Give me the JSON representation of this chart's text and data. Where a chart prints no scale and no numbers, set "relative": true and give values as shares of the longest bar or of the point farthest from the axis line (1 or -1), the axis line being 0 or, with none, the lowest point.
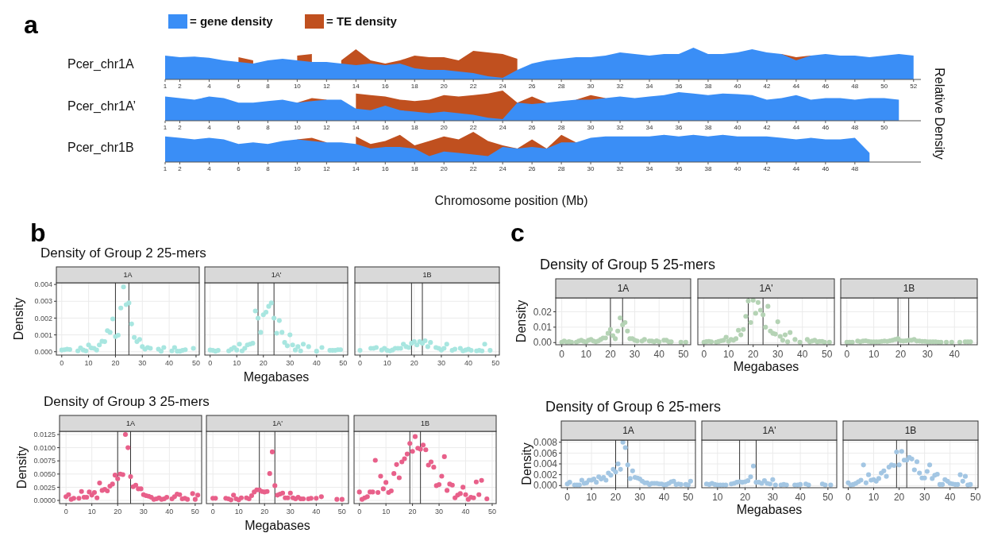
{
  "chart_data": [
    {
      "type": "area",
      "relative": true,
      "title": "Pcer_chr1A",
      "annotations": [
        "a"
      ],
      "legend": "top left",
      "xlim": [
        1,
        52.5
      ],
      "xticks": [
        1,
        2,
        4,
        6,
        8,
        10,
        12,
        14,
        16,
        18,
        20,
        22,
        24,
        26,
        28,
        30,
        32,
        34,
        36,
        38,
        40,
        42,
        44,
        46,
        48,
        50,
        52
      ],
      "x": [
        1,
        2,
        3,
        4,
        5,
        6,
        7,
        8,
        9,
        10,
        11,
        12,
        13,
        14,
        15,
        16,
        17,
        18,
        19,
        20,
        21,
        22,
        23,
        24,
        25,
        26,
        27,
        28,
        29,
        30,
        31,
        32,
        33,
        34,
        35,
        36,
        37,
        38,
        39,
        40,
        41,
        42,
        43,
        44,
        45,
        46,
        47,
        48,
        49,
        50,
        51,
        52
      ],
      "series": [
        {
          "name": "= gene density",
          "color": "#3a8ef6",
          "values": [
            0.75,
            0.7,
            0.72,
            0.68,
            0.6,
            0.55,
            0.5,
            0.6,
            0.65,
            0.6,
            0.55,
            0.55,
            0.5,
            0.45,
            0.5,
            0.45,
            0.5,
            0.35,
            0.3,
            0.3,
            0.25,
            0.2,
            0.1,
            0.05,
            0.3,
            0.5,
            0.6,
            0.65,
            0.7,
            0.7,
            0.75,
            0.85,
            0.8,
            0.75,
            0.8,
            0.8,
            1.0,
            0.8,
            0.8,
            0.85,
            0.95,
            0.85,
            0.8,
            0.6,
            0.75,
            0.8,
            0.75,
            0.75,
            0.7,
            0.75,
            0.8,
            0.75
          ]
        },
        {
          "name": "= TE density",
          "color": "#c0501f",
          "values": [
            null,
            null,
            null,
            null,
            null,
            0.7,
            0.6,
            null,
            null,
            0.75,
            0.8,
            null,
            0.6,
            0.95,
            0.6,
            0.5,
            0.6,
            0.75,
            0.7,
            0.7,
            0.6,
            0.9,
            0.85,
            0.8,
            0.65,
            null,
            null,
            null,
            null,
            null,
            null,
            null,
            null,
            null,
            null,
            null,
            null,
            null,
            null,
            null,
            null,
            null,
            0.8,
            0.7,
            0.75,
            null,
            null,
            null,
            null,
            null,
            null,
            null
          ]
        }
      ]
    },
    {
      "type": "area",
      "relative": true,
      "title": "Pcer_chr1A’",
      "ylabel": "Relative Density",
      "xlim": [
        1,
        52.5
      ],
      "xticks": [
        1,
        2,
        4,
        6,
        8,
        10,
        12,
        14,
        16,
        18,
        20,
        22,
        24,
        26,
        28,
        30,
        32,
        34,
        36,
        38,
        40,
        42,
        44,
        46,
        48,
        50
      ],
      "x": [
        1,
        2,
        3,
        4,
        5,
        6,
        7,
        8,
        9,
        10,
        11,
        12,
        13,
        14,
        15,
        16,
        17,
        18,
        19,
        20,
        21,
        22,
        23,
        24,
        25,
        26,
        27,
        28,
        29,
        30,
        31,
        32,
        33,
        34,
        35,
        36,
        37,
        38,
        39,
        40,
        41,
        42,
        43,
        44,
        45,
        46,
        47,
        48,
        49,
        50,
        51
      ],
      "series": [
        {
          "color": "#3a8ef6",
          "values": [
            0.8,
            0.75,
            0.7,
            0.8,
            0.75,
            0.6,
            0.6,
            0.65,
            0.7,
            0.6,
            0.65,
            0.7,
            0.7,
            0.4,
            0.35,
            0.5,
            0.35,
            0.3,
            0.25,
            0.3,
            0.25,
            0.2,
            0.1,
            0.05,
            0.6,
            0.55,
            0.6,
            0.65,
            0.7,
            0.7,
            0.75,
            0.8,
            0.75,
            0.8,
            0.85,
            0.95,
            0.9,
            0.85,
            0.9,
            0.88,
            0.85,
            0.7,
            0.75,
            0.85,
            0.7,
            0.75,
            0.75,
            0.7,
            0.75,
            0.75,
            0.7
          ]
        },
        {
          "color": "#c0501f",
          "values": [
            null,
            null,
            null,
            null,
            null,
            null,
            null,
            null,
            null,
            0.6,
            0.75,
            0.7,
            null,
            0.9,
            0.85,
            0.8,
            0.7,
            0.65,
            0.7,
            0.85,
            0.8,
            0.85,
            0.9,
            1.0,
            0.6,
            0.8,
            0.6,
            null,
            0.7,
            0.85,
            0.75,
            null,
            null,
            null,
            null,
            null,
            null,
            null,
            null,
            null,
            null,
            null,
            null,
            null,
            null,
            null,
            null,
            null,
            null,
            null,
            null
          ]
        }
      ]
    },
    {
      "type": "area",
      "relative": true,
      "title": "Pcer_chr1B",
      "xlabel": "Chromosome position (Mb)",
      "xlim": [
        1,
        52.5
      ],
      "xticks": [
        1,
        2,
        4,
        6,
        8,
        10,
        12,
        14,
        16,
        18,
        20,
        22,
        24,
        26,
        28,
        30,
        32,
        34,
        36,
        38,
        40,
        42,
        44,
        46,
        48
      ],
      "x": [
        1,
        2,
        3,
        4,
        5,
        6,
        7,
        8,
        9,
        10,
        11,
        12,
        13,
        14,
        15,
        16,
        17,
        18,
        19,
        20,
        21,
        22,
        23,
        24,
        25,
        26,
        27,
        28,
        29,
        30,
        31,
        32,
        33,
        34,
        35,
        36,
        37,
        38,
        39,
        40,
        41,
        42,
        43,
        44,
        45,
        46,
        47,
        48,
        49
      ],
      "series": [
        {
          "color": "#3a8ef6",
          "values": [
            0.85,
            0.8,
            0.75,
            0.8,
            0.75,
            0.6,
            0.65,
            0.6,
            0.7,
            0.75,
            0.7,
            0.65,
            0.65,
            0.6,
            0.45,
            0.5,
            0.5,
            0.45,
            0.2,
            0.35,
            0.3,
            0.25,
            0.2,
            0.5,
            0.45,
            0.5,
            0.45,
            0.65,
            0.65,
            0.8,
            0.85,
            0.85,
            0.85,
            0.85,
            0.9,
            0.85,
            0.9,
            0.85,
            0.9,
            0.85,
            0.85,
            0.85,
            0.8,
            0.75,
            0.8,
            0.75,
            0.75,
            0.8,
            0.3
          ]
        },
        {
          "color": "#c0501f",
          "values": [
            null,
            null,
            null,
            null,
            null,
            null,
            null,
            null,
            null,
            0.75,
            0.8,
            0.65,
            null,
            0.85,
            0.6,
            0.7,
            0.9,
            0.55,
            0.7,
            0.85,
            0.75,
            1.0,
            0.7,
            0.55,
            0.45,
            0.75,
            0.45,
            0.9,
            0.65,
            null,
            null,
            null,
            null,
            null,
            null,
            null,
            null,
            null,
            null,
            null,
            null,
            null,
            null,
            null,
            null,
            null,
            null,
            null,
            null
          ]
        }
      ]
    },
    {
      "type": "scatter",
      "title": "Density of Group 2 25-mers",
      "subtitle": "1A",
      "ylabel": "Density",
      "annotations": [
        "b"
      ],
      "color": "#a8e6e0",
      "marker": "circle",
      "grid": true,
      "xlim": [
        -2,
        51.2
      ],
      "xticks": [
        0,
        10,
        20,
        30,
        40,
        50
      ],
      "ylim": [
        -0.0002,
        0.0041
      ],
      "yticks": [
        {
          "value": 0,
          "label": "0.000"
        },
        {
          "value": 0.001,
          "label": "0.001"
        },
        {
          "value": 0.002,
          "label": "0.002"
        },
        {
          "value": 0.003,
          "label": "0.003"
        },
        {
          "value": 0.004,
          "label": "0.004"
        }
      ],
      "ref_lines": [
        {
          "axis": "x",
          "value": 20
        },
        {
          "axis": "x",
          "value": 25
        }
      ],
      "x": [
        0,
        1,
        2,
        3,
        6,
        7,
        8,
        9,
        10,
        11,
        12,
        13,
        14,
        15,
        16,
        17,
        18,
        19,
        20,
        21,
        22,
        23,
        24,
        25,
        26,
        27,
        28,
        29,
        30,
        31,
        32,
        33,
        36,
        37,
        38,
        41,
        42,
        43,
        44,
        45,
        46,
        49
      ],
      "values": [
        0.0001,
        0.00012,
        0.00015,
        0.00013,
        5e-05,
        0.00022,
        0.0001,
        5e-05,
        0.0004,
        0.00022,
        0.0002,
        0.0001,
        0.0004,
        0.00062,
        0.0006,
        0.00125,
        0.00115,
        0.00195,
        0.0009,
        0.00098,
        0.0026,
        0.00385,
        0.0028,
        0.0029,
        0.00165,
        0.00085,
        0.0006,
        0.00073,
        0.0003,
        0.00015,
        0.00025,
        0.0002,
        0.00015,
        3e-05,
        0.00025,
        5e-05,
        0.00025,
        3e-05,
        3e-05,
        8e-05,
        0.00012,
        0.0002
      ]
    },
    {
      "type": "scatter",
      "subtitle": "1A'",
      "xlabel": "Megabases",
      "tick_labels": "x",
      "color": "#a8e6e0",
      "marker": "circle",
      "grid": true,
      "xlim": [
        -2,
        51.7
      ],
      "xticks": [
        0,
        10,
        20,
        30,
        40,
        50
      ],
      "ylim": [
        -0.0002,
        0.0041
      ],
      "yticks": [
        0,
        0.001,
        0.002,
        0.003,
        0.004
      ],
      "ref_lines": [
        {
          "axis": "x",
          "value": 18
        },
        {
          "axis": "x",
          "value": 24
        }
      ],
      "x": [
        0,
        1,
        2,
        3,
        7,
        8,
        9,
        10,
        11,
        12,
        13,
        14,
        15,
        16,
        17,
        18,
        19,
        20,
        21,
        22,
        23,
        24,
        25,
        26,
        27,
        28,
        29,
        30,
        31,
        32,
        33,
        34,
        35,
        37,
        40,
        42,
        45,
        46,
        47,
        48,
        49
      ],
      "values": [
        0.0001,
        8e-05,
        3e-05,
        8e-05,
        5e-05,
        0.00015,
        0.00025,
        0.0001,
        0.00045,
        5e-05,
        0.0002,
        0.0004,
        0.00045,
        0.0005,
        0.00242,
        0.002,
        0.00115,
        0.0022,
        0.00235,
        0.0027,
        0.0029,
        0.002,
        0.0011,
        0.00185,
        0.00115,
        0.00055,
        0.00035,
        0.001,
        0.0004,
        0.0001,
        0.0003,
        5e-05,
        0.00045,
        0.0003,
        3e-05,
        0.00025,
        8e-05,
        8e-05,
        8e-05,
        0.00012,
        0.00012
      ]
    },
    {
      "type": "scatter",
      "subtitle": "1B",
      "tick_labels": "x",
      "color": "#a8e6e0",
      "marker": "circle",
      "grid": true,
      "xlim": [
        -1.9,
        51.4
      ],
      "xticks": [
        0,
        10,
        20,
        30,
        40,
        50
      ],
      "ylim": [
        -0.0002,
        0.0041
      ],
      "yticks": [
        0,
        0.001,
        0.002,
        0.003,
        0.004
      ],
      "ref_lines": [
        {
          "axis": "x",
          "value": 19
        },
        {
          "axis": "x",
          "value": 23
        }
      ],
      "x": [
        0,
        4,
        5,
        6,
        8,
        9,
        10,
        11,
        12,
        13,
        14,
        15,
        16,
        17,
        18,
        19,
        20,
        21,
        22,
        23,
        24,
        25,
        26,
        28,
        29,
        30,
        31,
        32,
        34,
        35,
        37,
        38,
        39,
        40,
        41,
        43,
        44,
        45,
        46,
        48
      ],
      "values": [
        8e-05,
        0.0002,
        0.0002,
        0.00025,
        0.0001,
        0.0002,
        8e-05,
        5e-05,
        0.0001,
        0.0002,
        0.0002,
        0.0002,
        0.00045,
        0.0003,
        0.00025,
        0.0005,
        0.0006,
        0.0004,
        0.0006,
        0.0005,
        0.00065,
        0.0003,
        0.00055,
        0.00025,
        0.0002,
        0.0001,
        0.0002,
        0.00045,
        8e-05,
        0.00015,
        0.0002,
        5e-05,
        0.0001,
        0.00015,
        8e-05,
        5e-05,
        8e-05,
        5e-05,
        0.00045,
        8e-05
      ]
    },
    {
      "type": "scatter",
      "title": "Density of Group 3 25-mers",
      "subtitle": "1A",
      "ylabel": "Density",
      "color": "#e8608a",
      "marker": "circle",
      "grid": true,
      "xlim": [
        -2.5,
        52.5
      ],
      "xticks": [
        0,
        10,
        20,
        30,
        40,
        50
      ],
      "ylim": [
        -0.0006,
        0.0131
      ],
      "yticks": [
        {
          "value": 0,
          "label": "0.0000"
        },
        {
          "value": 0.0025,
          "label": "0.0025"
        },
        {
          "value": 0.005,
          "label": "0.0050"
        },
        {
          "value": 0.0075,
          "label": "0.0075"
        },
        {
          "value": 0.01,
          "label": "0.0100"
        },
        {
          "value": 0.0125,
          "label": "0.0125"
        }
      ],
      "ref_lines": [
        {
          "axis": "x",
          "value": 20
        },
        {
          "axis": "x",
          "value": 25
        }
      ],
      "x": [
        0,
        1,
        2,
        3,
        5,
        6,
        7,
        8,
        9,
        10,
        11,
        12,
        13,
        14,
        15,
        16,
        17,
        18,
        19,
        20,
        21,
        22,
        23,
        24,
        25,
        26,
        27,
        28,
        29,
        30,
        31,
        32,
        33,
        34,
        35,
        36,
        37,
        38,
        39,
        41,
        42,
        43,
        44,
        45,
        46,
        47,
        49,
        50,
        51
      ],
      "values": [
        0.0007,
        0.0011,
        0.0002,
        0.0004,
        0.0004,
        0.0017,
        0.0006,
        0.0006,
        0.0016,
        0.001,
        0.0015,
        0.0005,
        0.0033,
        0.0019,
        0.0021,
        0.0018,
        0.0027,
        0.0031,
        0.0048,
        0.0041,
        0.005,
        0.0049,
        0.0125,
        0.01,
        0.0045,
        0.0026,
        0.0029,
        0.0022,
        0.0022,
        0.0011,
        0.0009,
        0.0008,
        0.0006,
        0.0002,
        0.0003,
        0.0005,
        0.0002,
        0.0003,
        0.0006,
        0.0003,
        0.0007,
        0.0012,
        0.0011,
        0.0003,
        0.0004,
        0.0002,
        0.0013,
        0.0002,
        0.001
      ]
    },
    {
      "type": "scatter",
      "subtitle": "1A'",
      "xlabel": "Megabases",
      "tick_labels": "x",
      "color": "#e8608a",
      "marker": "circle",
      "grid": true,
      "xlim": [
        -2.5,
        52.5
      ],
      "xticks": [
        0,
        10,
        20,
        30,
        40,
        50
      ],
      "ylim": [
        -0.0006,
        0.0131
      ],
      "yticks": [
        0,
        0.0025,
        0.005,
        0.0075,
        0.01,
        0.0125
      ],
      "ref_lines": [
        {
          "axis": "x",
          "value": 18
        },
        {
          "axis": "x",
          "value": 24
        }
      ],
      "x": [
        0,
        1,
        5,
        6,
        7,
        8,
        9,
        10,
        11,
        13,
        14,
        15,
        16,
        17,
        18,
        19,
        20,
        21,
        22,
        23,
        24,
        25,
        26,
        27,
        28,
        29,
        30,
        31,
        32,
        33,
        34,
        35,
        37,
        38,
        40,
        42,
        48,
        50
      ],
      "values": [
        0.0004,
        0.0004,
        0.0004,
        0.0003,
        0.0001,
        0.001,
        0.0003,
        0.0001,
        0.0005,
        0.0005,
        0.0003,
        0.0009,
        0.0016,
        0.002,
        0.002,
        0.0017,
        0.0016,
        0.0017,
        0.0051,
        0.0092,
        0.0028,
        0.001,
        0.0012,
        0.0014,
        0.0005,
        0.0005,
        0.0014,
        0.0005,
        0.0003,
        0.0006,
        0.0003,
        0.0003,
        0.0003,
        0.0004,
        0.0004,
        0.0007,
        0.0002,
        0.0002
      ]
    },
    {
      "type": "scatter",
      "subtitle": "1B",
      "tick_labels": "x",
      "color": "#e8608a",
      "marker": "circle",
      "grid": true,
      "xlim": [
        -2,
        51.5
      ],
      "xticks": [
        0,
        10,
        20,
        30,
        40,
        50
      ],
      "ylim": [
        -0.0006,
        0.0131
      ],
      "yticks": [
        0,
        0.0025,
        0.005,
        0.0075,
        0.01,
        0.0125
      ],
      "ref_lines": [
        {
          "axis": "x",
          "value": 19
        },
        {
          "axis": "x",
          "value": 23
        }
      ],
      "x": [
        0,
        1,
        2,
        3,
        4,
        5,
        6,
        7,
        8,
        9,
        10,
        11,
        12,
        13,
        14,
        15,
        16,
        17,
        18,
        19,
        20,
        21,
        22,
        23,
        24,
        25,
        26,
        27,
        28,
        29,
        30,
        31,
        32,
        33,
        34,
        35,
        36,
        37,
        38,
        39,
        40,
        41,
        42,
        43,
        44,
        45,
        46,
        48
      ],
      "values": [
        0.0016,
        0.0002,
        0.0005,
        0.0007,
        0.0016,
        0.0016,
        0.0076,
        0.0015,
        0.0046,
        0.0022,
        0.0034,
        0.0015,
        0.0018,
        0.0051,
        0.0068,
        0.0043,
        0.0073,
        0.0079,
        0.0088,
        0.0108,
        0.0093,
        0.0121,
        0.0099,
        0.0097,
        0.0105,
        0.0096,
        0.0067,
        0.0073,
        0.0063,
        0.0028,
        0.003,
        0.0046,
        0.0083,
        0.0019,
        0.0031,
        0.0029,
        0.0005,
        0.001,
        0.0013,
        0.0025,
        0.0011,
        0.0002,
        0.0006,
        0.0005,
        0.0035,
        0.0011,
        0.0038,
        0.0003
      ]
    },
    {
      "type": "scatter",
      "title": "Density of Group 5 25-mers",
      "subtitle": "1A",
      "ylabel": "Density",
      "annotations": [
        "c"
      ],
      "color": "#b5d3b5",
      "marker": "circle",
      "grid": true,
      "xlim": [
        -2.5,
        53
      ],
      "xticks": [
        0,
        10,
        20,
        30,
        40,
        50
      ],
      "ylim": [
        -0.0014,
        0.029
      ],
      "yticks": [
        {
          "value": 0,
          "label": "0.00"
        },
        {
          "value": 0.01,
          "label": "0.01"
        },
        {
          "value": 0.02,
          "label": "0.02"
        }
      ],
      "ref_lines": [
        {
          "axis": "x",
          "value": 20
        },
        {
          "axis": "x",
          "value": 25
        }
      ],
      "x": [
        0,
        1,
        2,
        3,
        4,
        6,
        7,
        8,
        9,
        10,
        11,
        12,
        13,
        14,
        15,
        16,
        17,
        18,
        19,
        20,
        21,
        22,
        23,
        24,
        25,
        26,
        27,
        28,
        29,
        30,
        31,
        33,
        34,
        36,
        37,
        38,
        39,
        40,
        42,
        43,
        44,
        45,
        49,
        51
      ],
      "values": [
        0.0003,
        0.001,
        0.0003,
        0.0006,
        0.0002,
        0.0003,
        0.001,
        0.0015,
        0.0008,
        0.0004,
        0.0015,
        0.002,
        0.001,
        0.0005,
        0.001,
        0.002,
        0.003,
        0.003,
        0.006,
        0.0085,
        0.0045,
        0.0025,
        0.0075,
        0.016,
        0.0115,
        0.013,
        0.0075,
        0.0025,
        0.0025,
        0.0015,
        0.001,
        0.001,
        0.002,
        0.001,
        0.001,
        0.0005,
        0.0012,
        0.0005,
        0.0015,
        0.0015,
        0.0005,
        0.0005,
        0.0003,
        0.0003
      ]
    },
    {
      "type": "scatter",
      "subtitle": "1A'",
      "xlabel": "Megabases",
      "tick_labels": "x",
      "color": "#b5d3b5",
      "marker": "circle",
      "grid": true,
      "xlim": [
        -2.5,
        53
      ],
      "xticks": [
        0,
        10,
        20,
        30,
        40,
        50
      ],
      "ylim": [
        -0.0014,
        0.029
      ],
      "yticks": [
        0,
        0.01,
        0.02
      ],
      "ref_lines": [
        {
          "axis": "x",
          "value": 18
        },
        {
          "axis": "x",
          "value": 24
        }
      ],
      "x": [
        0,
        1,
        2,
        3,
        5,
        6,
        7,
        8,
        9,
        10,
        11,
        12,
        13,
        14,
        15,
        16,
        17,
        18,
        19,
        20,
        21,
        22,
        23,
        24,
        25,
        26,
        27,
        28,
        29,
        30,
        31,
        32,
        33,
        34,
        35,
        37,
        39,
        42,
        43,
        44,
        45,
        46,
        47,
        48,
        49,
        51
      ],
      "values": [
        0.0003,
        0.0006,
        0.0008,
        0.0005,
        0.0003,
        0.0007,
        0.0012,
        0.0015,
        0.0035,
        0.0008,
        0.002,
        0.0015,
        0.0025,
        0.008,
        0.005,
        0.0085,
        0.017,
        0.027,
        0.013,
        0.0275,
        0.019,
        0.026,
        0.021,
        0.018,
        0.01,
        0.0235,
        0.0075,
        0.006,
        0.0055,
        0.0135,
        0.004,
        0.0015,
        0.005,
        0.0005,
        0.0065,
        0.002,
        0.0003,
        0.002,
        0.0005,
        0.001,
        0.0015,
        0.0005,
        0.0008,
        0.0008,
        0.0003,
        0.0003
      ]
    },
    {
      "type": "scatter",
      "subtitle": "1B",
      "tick_labels": "x",
      "color": "#b5d3b5",
      "marker": "circle",
      "grid": true,
      "xlim": [
        -2.3,
        48.5
      ],
      "xticks": [
        0,
        10,
        20,
        30,
        40
      ],
      "ylim": [
        -0.0014,
        0.029
      ],
      "yticks": [
        0,
        0.01,
        0.02
      ],
      "ref_lines": [
        {
          "axis": "x",
          "value": 19
        },
        {
          "axis": "x",
          "value": 23
        }
      ],
      "x": [
        0,
        1,
        2,
        4,
        5,
        6,
        7,
        8,
        9,
        10,
        11,
        12,
        13,
        14,
        15,
        16,
        17,
        18,
        19,
        20,
        21,
        22,
        23,
        24,
        25,
        26,
        27,
        28,
        29,
        30,
        31,
        32,
        33,
        34,
        35,
        37,
        39,
        42,
        44,
        45,
        46
      ],
      "values": [
        0.0003,
        0.0003,
        0.0003,
        0.001,
        0.0005,
        0.001,
        0.0012,
        0.0008,
        0.0005,
        0.0005,
        0.0005,
        0.0005,
        0.0008,
        0.001,
        0.0008,
        0.0012,
        0.0015,
        0.002,
        0.0025,
        0.0012,
        0.001,
        0.0012,
        0.0015,
        0.0015,
        0.002,
        0.001,
        0.001,
        0.0008,
        0.0008,
        0.0005,
        0.0005,
        0.0005,
        0.0005,
        0.0003,
        0.0003,
        0.0003,
        0.0003,
        0.0003,
        0.0005,
        0.0005,
        0.0005
      ]
    },
    {
      "type": "scatter",
      "title": "Density of Group 6 25-mers",
      "subtitle": "1A",
      "ylabel": "Density",
      "color": "#a3c6e3",
      "marker": "circle",
      "grid": true,
      "xlim": [
        -2.5,
        53
      ],
      "xticks": [
        0,
        10,
        20,
        30,
        40,
        50
      ],
      "ylim": [
        -0.0004,
        0.0084
      ],
      "yticks": [
        {
          "value": 0,
          "label": "0.000"
        },
        {
          "value": 0.002,
          "label": "0.002"
        },
        {
          "value": 0.004,
          "label": "0.004"
        },
        {
          "value": 0.006,
          "label": "0.006"
        },
        {
          "value": 0.008,
          "label": "0.008"
        }
      ],
      "ref_lines": [
        {
          "axis": "x",
          "value": 20
        },
        {
          "axis": "x",
          "value": 25
        }
      ],
      "x": [
        0,
        1,
        3,
        4,
        5,
        6,
        7,
        8,
        9,
        10,
        11,
        12,
        13,
        14,
        15,
        16,
        17,
        18,
        19,
        20,
        21,
        22,
        23,
        24,
        25,
        26,
        27,
        28,
        29,
        30,
        31,
        32,
        33,
        34,
        35,
        36,
        37,
        38,
        39,
        40,
        41,
        42,
        43,
        44,
        45,
        46,
        47,
        49,
        50,
        51
      ],
      "values": [
        0.0003,
        0.0006,
        0.0001,
        0.0001,
        0.0001,
        0.001,
        0.0004,
        0.0005,
        0.001,
        0.001,
        0.0012,
        0.0006,
        0.0016,
        0.0012,
        0.0015,
        0.001,
        0.0023,
        0.0019,
        0.003,
        0.0025,
        0.004,
        0.003,
        0.008,
        0.007,
        0.0038,
        0.0013,
        0.0027,
        0.0015,
        0.0014,
        0.0012,
        0.0008,
        0.0005,
        0.0005,
        0.0002,
        0.0004,
        0.0004,
        0.0004,
        0.0003,
        0.0003,
        0.0001,
        0.0002,
        0.0004,
        0.0007,
        0.0008,
        0.0002,
        0.0003,
        0.0002,
        0.0002,
        0.0001,
        0.0008
      ]
    },
    {
      "type": "scatter",
      "subtitle": "1A'",
      "xlabel": "Megabases",
      "tick_labels": "x",
      "color": "#a3c6e3",
      "marker": "circle",
      "grid": true,
      "xlim": [
        4.3,
        53.2
      ],
      "xticks": [
        10,
        20,
        30,
        40,
        50
      ],
      "ylim": [
        -0.0004,
        0.0084
      ],
      "yticks": [
        0,
        0.002,
        0.004,
        0.006,
        0.008
      ],
      "ref_lines": [
        {
          "axis": "x",
          "value": 18
        },
        {
          "axis": "x",
          "value": 24
        }
      ],
      "x": [
        6,
        7,
        8,
        9,
        10,
        11,
        12,
        13,
        15,
        16,
        17,
        18,
        19,
        20,
        21,
        22,
        23,
        24,
        25,
        26,
        27,
        28,
        29,
        30,
        31,
        33,
        34,
        35,
        38,
        39,
        40,
        42,
        43,
        48,
        49,
        51
      ],
      "values": [
        0.0003,
        0.0002,
        0.0004,
        0.0002,
        0.0001,
        0.0001,
        0.0001,
        0.0001,
        0.0003,
        0.0004,
        0.0006,
        0.0007,
        0.0006,
        0.0007,
        0.0009,
        0.0016,
        0.0036,
        0.0006,
        0.0006,
        0.0004,
        0.0009,
        0.0004,
        0.0003,
        0.0011,
        0.0001,
        0.0001,
        0.0002,
        0.0001,
        0.0001,
        0.0001,
        0.0002,
        0.0003,
        0.0001,
        0.0003,
        0.0001,
        0.0001
      ]
    },
    {
      "type": "scatter",
      "subtitle": "1B",
      "tick_labels": "x",
      "color": "#a3c6e3",
      "marker": "circle",
      "grid": true,
      "xlim": [
        -2,
        51
      ],
      "xticks": [
        0,
        10,
        20,
        30,
        40,
        50
      ],
      "ylim": [
        -0.0004,
        0.0084
      ],
      "yticks": [
        0,
        0.002,
        0.004,
        0.006,
        0.008
      ],
      "ref_lines": [
        {
          "axis": "x",
          "value": 19
        },
        {
          "axis": "x",
          "value": 23
        }
      ],
      "x": [
        0,
        1,
        2,
        3,
        4,
        5,
        6,
        7,
        8,
        9,
        10,
        11,
        12,
        13,
        14,
        15,
        16,
        17,
        18,
        19,
        20,
        21,
        22,
        23,
        24,
        25,
        26,
        27,
        28,
        29,
        30,
        31,
        32,
        33,
        34,
        35,
        36,
        37,
        38,
        39,
        40,
        41,
        42,
        43,
        44,
        45,
        46,
        47,
        48
      ],
      "values": [
        0.0005,
        0.0001,
        0.0002,
        0.0004,
        0.0007,
        0.001,
        0.0038,
        0.0005,
        0.002,
        0.001,
        0.0011,
        0.0008,
        0.0013,
        0.0023,
        0.0027,
        0.0017,
        0.0034,
        0.0038,
        0.0037,
        0.0062,
        0.0038,
        0.0063,
        0.0047,
        0.0047,
        0.0052,
        0.0049,
        0.0029,
        0.0044,
        0.0023,
        0.0014,
        0.0014,
        0.0026,
        0.0038,
        0.0013,
        0.0019,
        0.0021,
        0.0002,
        0.0002,
        0.0011,
        0.0008,
        0.0004,
        0.0003,
        0.0002,
        0.0002,
        0.002,
        0.0008,
        0.0017,
        0.0001,
        0.0002
      ]
    }
  ]
}
